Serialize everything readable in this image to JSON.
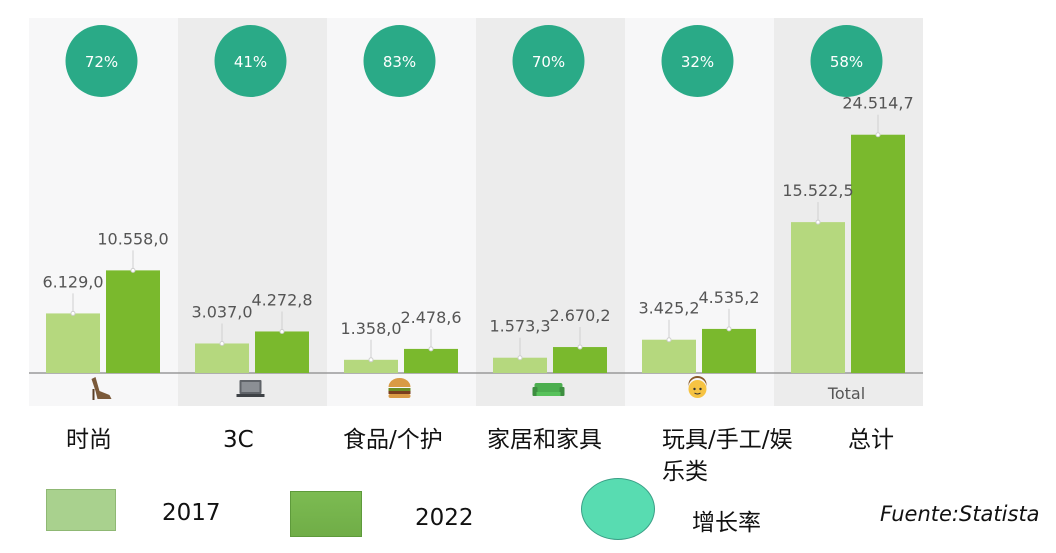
{
  "chart_data": {
    "type": "bar",
    "categories": [
      "时尚",
      "3C",
      "食品/个护",
      "家居和家具",
      "玩具/手工/娱乐类",
      "总计"
    ],
    "category_lines": [
      [
        "时尚"
      ],
      [
        "3C"
      ],
      [
        "食品/个护"
      ],
      [
        "家居和家具"
      ],
      [
        "玩具/手工/娱",
        "乐类"
      ],
      [
        "总计"
      ]
    ],
    "icons": [
      "high-heel-shoe-icon",
      "laptop-icon",
      "burger-icon",
      "sofa-icon",
      "boy-face-icon",
      ""
    ],
    "tick_labels": [
      "",
      "",
      "",
      "",
      "",
      "Total"
    ],
    "series": [
      {
        "name": "2017",
        "values": [
          6129.0,
          3037.0,
          1358.0,
          1573.3,
          3425.2,
          15522.5
        ],
        "labels": [
          "6.129,0",
          "3.037,0",
          "1.358,0",
          "1.573,3",
          "3.425,2",
          "15.522,5"
        ],
        "color": "#b5d87e"
      },
      {
        "name": "2022",
        "values": [
          10558.0,
          4272.8,
          2478.6,
          2670.2,
          4535.2,
          24514.7
        ],
        "labels": [
          "10.558,0",
          "4.272,8",
          "2.478,6",
          "2.670,2",
          "4.535,2",
          "24.514,7"
        ],
        "color": "#7ab92d"
      }
    ],
    "growth": [
      "72%",
      "41%",
      "83%",
      "70%",
      "32%",
      "58%"
    ],
    "growth_color": "#2aaa87",
    "ylim": [
      0,
      28000
    ],
    "title": "",
    "xlabel": "",
    "ylabel": ""
  },
  "legend": {
    "y2017": "2017",
    "y2022": "2022",
    "growth": "增长率",
    "color_2017": "#a9d18e",
    "color_2022": "#70ad47",
    "color_growth": "#58dcb1"
  },
  "source": "Fuente:Statista"
}
